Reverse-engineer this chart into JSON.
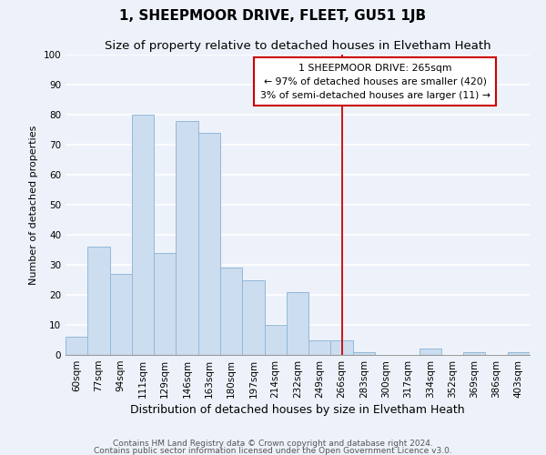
{
  "title": "1, SHEEPMOOR DRIVE, FLEET, GU51 1JB",
  "subtitle": "Size of property relative to detached houses in Elvetham Heath",
  "xlabel": "Distribution of detached houses by size in Elvetham Heath",
  "ylabel": "Number of detached properties",
  "bin_labels": [
    "60sqm",
    "77sqm",
    "94sqm",
    "111sqm",
    "129sqm",
    "146sqm",
    "163sqm",
    "180sqm",
    "197sqm",
    "214sqm",
    "232sqm",
    "249sqm",
    "266sqm",
    "283sqm",
    "300sqm",
    "317sqm",
    "334sqm",
    "352sqm",
    "369sqm",
    "386sqm",
    "403sqm"
  ],
  "bar_heights": [
    6,
    36,
    27,
    80,
    34,
    78,
    74,
    29,
    25,
    10,
    21,
    5,
    5,
    1,
    0,
    0,
    2,
    0,
    1,
    0,
    1
  ],
  "bar_color": "#ccddf0",
  "bar_edge_color": "#92b8d8",
  "vline_x_index": 12,
  "vline_color": "#cc0000",
  "annotation_title": "1 SHEEPMOOR DRIVE: 265sqm",
  "annotation_line1": "← 97% of detached houses are smaller (420)",
  "annotation_line2": "3% of semi-detached houses are larger (11) →",
  "annotation_box_facecolor": "#ffffff",
  "annotation_box_edgecolor": "#cc0000",
  "footer_line1": "Contains HM Land Registry data © Crown copyright and database right 2024.",
  "footer_line2": "Contains public sector information licensed under the Open Government Licence v3.0.",
  "ylim": [
    0,
    100
  ],
  "background_color": "#edf2fa",
  "grid_color": "#ffffff",
  "title_fontsize": 11,
  "subtitle_fontsize": 9.5,
  "xlabel_fontsize": 9,
  "ylabel_fontsize": 8,
  "tick_fontsize": 7.5,
  "footer_fontsize": 6.5,
  "ann_fontsize": 7.8
}
